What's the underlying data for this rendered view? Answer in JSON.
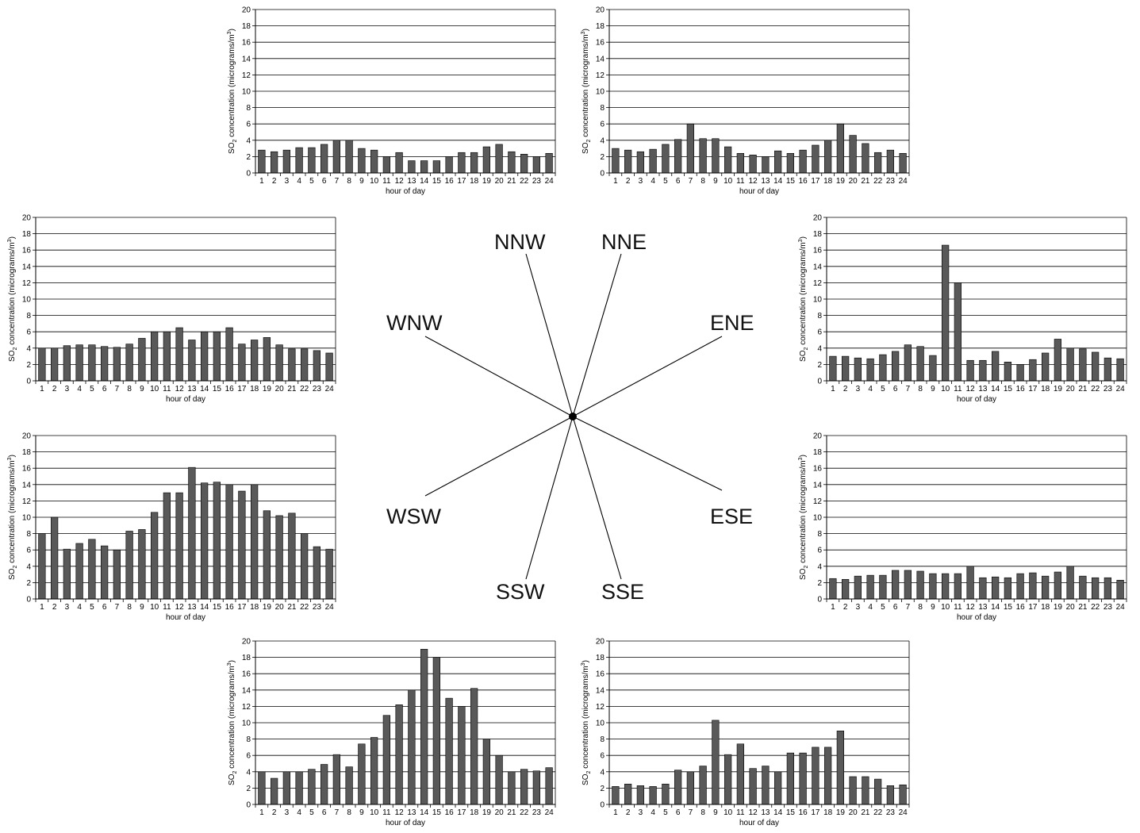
{
  "axis": {
    "ylabel": "SO2 concentration (micrograms/m3)",
    "ylabel_main": "SO",
    "ylabel_sub": "2",
    "ylabel_rest": " concentration (micrograms/m",
    "ylabel_sup": "3",
    "ylabel_end": ")",
    "xlabel": "hour of day"
  },
  "compass": {
    "labels": [
      "NNW",
      "NNE",
      "ENE",
      "ESE",
      "SSE",
      "SSW",
      "WSW",
      "WNW"
    ]
  },
  "colors": {
    "bar": "#595959",
    "bar_stroke": "#000000",
    "grid": "#000000",
    "line": "#000000"
  },
  "chart_data": [
    {
      "type": "bar",
      "direction": "NNW",
      "ylim": [
        0,
        20
      ],
      "ystep": 2,
      "categories": [
        1,
        2,
        3,
        4,
        5,
        6,
        7,
        8,
        9,
        10,
        11,
        12,
        13,
        14,
        15,
        16,
        17,
        18,
        19,
        20,
        21,
        22,
        23,
        24
      ],
      "values": [
        2.8,
        2.6,
        2.8,
        3.1,
        3.1,
        3.5,
        4.0,
        4.0,
        3.0,
        2.8,
        2.0,
        2.5,
        1.5,
        1.5,
        1.5,
        2.0,
        2.5,
        2.5,
        3.2,
        3.5,
        2.6,
        2.3,
        2.0,
        2.4
      ],
      "xlabel": "hour of day",
      "ylabel": "SO2 concentration (micrograms/m3)",
      "grid": true
    },
    {
      "type": "bar",
      "direction": "NNE",
      "ylim": [
        0,
        20
      ],
      "ystep": 2,
      "categories": [
        1,
        2,
        3,
        4,
        5,
        6,
        7,
        8,
        9,
        10,
        11,
        12,
        13,
        14,
        15,
        16,
        17,
        18,
        19,
        20,
        21,
        22,
        23,
        24
      ],
      "values": [
        3.0,
        2.8,
        2.6,
        2.9,
        3.5,
        4.1,
        6.0,
        4.2,
        4.2,
        3.2,
        2.4,
        2.2,
        2.0,
        2.7,
        2.4,
        2.8,
        3.4,
        4.0,
        6.0,
        4.6,
        3.6,
        2.5,
        2.8,
        2.4
      ],
      "xlabel": "hour of day",
      "ylabel": "SO2 concentration (micrograms/m3)",
      "grid": true
    },
    {
      "type": "bar",
      "direction": "WNW",
      "ylim": [
        0,
        20
      ],
      "ystep": 2,
      "categories": [
        1,
        2,
        3,
        4,
        5,
        6,
        7,
        8,
        9,
        10,
        11,
        12,
        13,
        14,
        15,
        16,
        17,
        18,
        19,
        20,
        21,
        22,
        23,
        24
      ],
      "values": [
        4.0,
        4.0,
        4.3,
        4.4,
        4.4,
        4.2,
        4.1,
        4.5,
        5.2,
        6.0,
        6.0,
        6.5,
        5.0,
        6.0,
        6.0,
        6.5,
        4.5,
        5.0,
        5.3,
        4.4,
        3.9,
        3.9,
        3.7,
        3.4
      ],
      "xlabel": "hour of day",
      "ylabel": "SO2 concentration (micrograms/m3)",
      "grid": true
    },
    {
      "type": "bar",
      "direction": "ENE",
      "ylim": [
        0,
        20
      ],
      "ystep": 2,
      "categories": [
        1,
        2,
        3,
        4,
        5,
        6,
        7,
        8,
        9,
        10,
        11,
        12,
        13,
        14,
        15,
        16,
        17,
        18,
        19,
        20,
        21,
        22,
        23,
        24
      ],
      "values": [
        3.0,
        3.0,
        2.8,
        2.7,
        3.2,
        3.6,
        4.4,
        4.2,
        3.1,
        16.6,
        12.0,
        2.5,
        2.5,
        3.6,
        2.3,
        2.0,
        2.6,
        3.4,
        5.1,
        4.0,
        3.9,
        3.5,
        2.8,
        2.7
      ],
      "xlabel": "hour of day",
      "ylabel": "SO2 concentration (micrograms/m3)",
      "grid": true
    },
    {
      "type": "bar",
      "direction": "WSW",
      "ylim": [
        0,
        20
      ],
      "ystep": 2,
      "categories": [
        1,
        2,
        3,
        4,
        5,
        6,
        7,
        8,
        9,
        10,
        11,
        12,
        13,
        14,
        15,
        16,
        17,
        18,
        19,
        20,
        21,
        22,
        23,
        24
      ],
      "values": [
        8.0,
        10.0,
        6.1,
        6.8,
        7.3,
        6.5,
        6.0,
        8.3,
        8.5,
        10.6,
        13.0,
        13.0,
        16.1,
        14.2,
        14.3,
        14.0,
        13.2,
        14.0,
        10.8,
        10.2,
        10.5,
        8.0,
        6.4,
        6.1
      ],
      "xlabel": "hour of day",
      "ylabel": "SO2 concentration (micrograms/m3)",
      "grid": true
    },
    {
      "type": "bar",
      "direction": "ESE",
      "ylim": [
        0,
        20
      ],
      "ystep": 2,
      "categories": [
        1,
        2,
        3,
        4,
        5,
        6,
        7,
        8,
        9,
        10,
        11,
        12,
        13,
        14,
        15,
        16,
        17,
        18,
        19,
        20,
        21,
        22,
        23,
        24
      ],
      "values": [
        2.5,
        2.4,
        2.8,
        2.9,
        2.9,
        3.5,
        3.5,
        3.4,
        3.1,
        3.1,
        3.1,
        4.0,
        2.6,
        2.7,
        2.6,
        3.1,
        3.2,
        2.8,
        3.3,
        4.0,
        2.8,
        2.6,
        2.6,
        2.3
      ],
      "xlabel": "hour of day",
      "ylabel": "SO2 concentration (micrograms/m3)",
      "grid": true
    },
    {
      "type": "bar",
      "direction": "SSW",
      "ylim": [
        0,
        20
      ],
      "ystep": 2,
      "categories": [
        1,
        2,
        3,
        4,
        5,
        6,
        7,
        8,
        9,
        10,
        11,
        12,
        13,
        14,
        15,
        16,
        17,
        18,
        19,
        20,
        21,
        22,
        23,
        24
      ],
      "values": [
        4.0,
        3.2,
        4.0,
        4.0,
        4.3,
        4.9,
        6.1,
        4.6,
        7.4,
        8.2,
        10.9,
        12.2,
        14.0,
        19.0,
        18.0,
        13.0,
        12.0,
        14.2,
        8.0,
        6.0,
        4.0,
        4.3,
        4.1,
        4.5
      ],
      "xlabel": "hour of day",
      "ylabel": "SO2 concentration (micrograms/m3)",
      "grid": true
    },
    {
      "type": "bar",
      "direction": "SSE",
      "ylim": [
        0,
        20
      ],
      "ystep": 2,
      "categories": [
        1,
        2,
        3,
        4,
        5,
        6,
        7,
        8,
        9,
        10,
        11,
        12,
        13,
        14,
        15,
        16,
        17,
        18,
        19,
        20,
        21,
        22,
        23,
        24
      ],
      "values": [
        2.2,
        2.5,
        2.3,
        2.2,
        2.5,
        4.2,
        4.0,
        4.7,
        10.3,
        6.1,
        7.4,
        4.4,
        4.7,
        4.0,
        6.3,
        6.3,
        7.0,
        7.0,
        9.0,
        3.4,
        3.4,
        3.1,
        2.3,
        2.4
      ],
      "xlabel": "hour of day",
      "ylabel": "SO2 concentration (micrograms/m3)",
      "grid": true
    }
  ]
}
